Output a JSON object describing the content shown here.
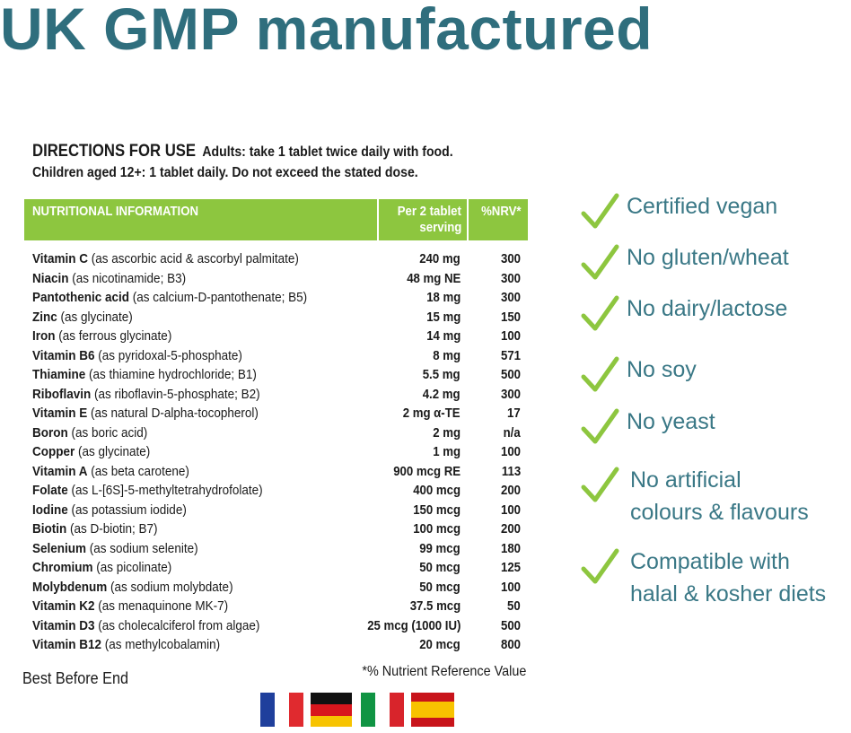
{
  "header": {
    "title": "UK GMP manufactured"
  },
  "directions": {
    "heading": "DIRECTIONS FOR USE",
    "line1": "Adults: take 1 tablet twice daily with food.",
    "line2": "Children aged 12+: 1 tablet daily. Do not exceed the stated dose."
  },
  "table": {
    "headers": [
      "NUTRITIONAL INFORMATION",
      "Per 2 tablet",
      "serving",
      "%NRV*"
    ],
    "rows": [
      [
        "Vitamin C",
        "(as ascorbic acid & ascorbyl palmitate)",
        "240 mg",
        "300"
      ],
      [
        "Niacin",
        "(as nicotinamide; B3)",
        "48 mg NE",
        "300"
      ],
      [
        "Pantothenic acid",
        "(as calcium-D-pantothenate; B5)",
        "18 mg",
        "300"
      ],
      [
        "Zinc",
        "(as glycinate)",
        "15 mg",
        "150"
      ],
      [
        "Iron",
        "(as ferrous glycinate)",
        "14 mg",
        "100"
      ],
      [
        "Vitamin B6",
        "(as pyridoxal-5-phosphate)",
        "8 mg",
        "571"
      ],
      [
        "Thiamine",
        "(as thiamine hydrochloride; B1)",
        "5.5 mg",
        "500"
      ],
      [
        "Riboflavin",
        "(as riboflavin-5-phosphate; B2)",
        "4.2 mg",
        "300"
      ],
      [
        "Vitamin E",
        "(as natural D-alpha-tocopherol)",
        "2 mg α-TE",
        "17"
      ],
      [
        "Boron",
        "(as boric acid)",
        "2 mg",
        "n/a"
      ],
      [
        "Copper",
        "(as glycinate)",
        "1 mg",
        "100"
      ],
      [
        "Vitamin A",
        "(as beta carotene)",
        "900 mcg RE",
        "113"
      ],
      [
        "Folate",
        "(as L-[6S]-5-methyltetrahydrofolate)",
        "400 mcg",
        "200"
      ],
      [
        "Iodine",
        "(as potassium iodide)",
        "150 mcg",
        "100"
      ],
      [
        "Biotin",
        "(as D-biotin; B7)",
        "100 mcg",
        "200"
      ],
      [
        "Selenium",
        "(as sodium selenite)",
        "99 mcg",
        "180"
      ],
      [
        "Chromium",
        "(as picolinate)",
        "50 mcg",
        "125"
      ],
      [
        "Molybdenum",
        "(as sodium molybdate)",
        "50 mcg",
        "100"
      ],
      [
        "Vitamin K2",
        "(as menaquinone MK-7)",
        "37.5 mcg",
        "50"
      ],
      [
        "Vitamin D3",
        "(as cholecalciferol from algae)",
        "25 mcg (1000 IU)",
        "500"
      ],
      [
        "Vitamin B12",
        "(as methylcobalamin)",
        "20 mcg",
        "800"
      ]
    ]
  },
  "footnote": "*% Nutrient Reference Value",
  "best_before": "Best Before End",
  "claims": [
    {
      "lines": [
        "Certified vegan"
      ]
    },
    {
      "lines": [
        "No gluten/wheat"
      ]
    },
    {
      "lines": [
        "No dairy/lactose"
      ]
    },
    {
      "lines": [
        "No soy"
      ]
    },
    {
      "lines": [
        "No yeast"
      ]
    },
    {
      "lines": [
        "No artificial",
        "colours & flavours"
      ]
    },
    {
      "lines": [
        "Compatible with",
        "halal & kosher diets"
      ]
    }
  ]
}
